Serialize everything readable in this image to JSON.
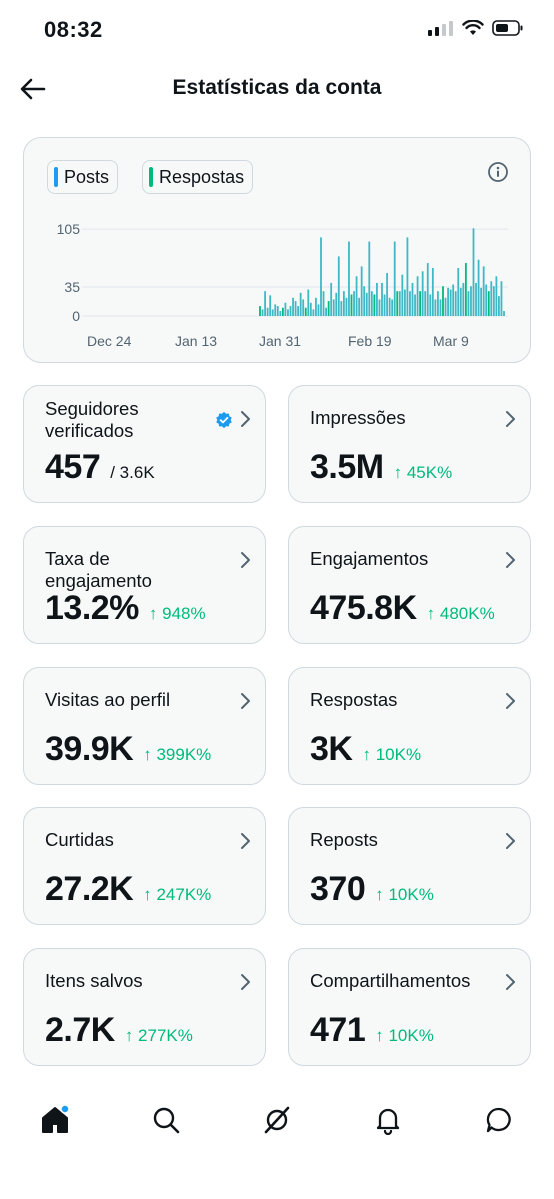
{
  "status_bar": {
    "time": "08:32"
  },
  "header": {
    "title": "Estatísticas da conta",
    "back_icon": "arrow-left-icon"
  },
  "colors": {
    "posts": "#1d9bf0",
    "replies": "#00ba7c",
    "bars": "#3fb8c6",
    "positive": "#00ba7c"
  },
  "legend": [
    {
      "label": "Posts"
    },
    {
      "label": "Respostas"
    }
  ],
  "chart_data": {
    "type": "bar",
    "x_tick_labels": [
      "Dec 24",
      "Jan 13",
      "Jan 31",
      "Feb 19",
      "Mar 9"
    ],
    "y_tick_labels": [
      "105",
      "35",
      "0"
    ],
    "ylim": [
      0,
      110
    ],
    "series": [
      {
        "name": "Posts",
        "values": []
      },
      {
        "name": "Respostas",
        "values": [
          12,
          8,
          30,
          10,
          25,
          8,
          14,
          12,
          6,
          10,
          16,
          8,
          12,
          22,
          18,
          12,
          28,
          20,
          10,
          32,
          16,
          8,
          22,
          14,
          95,
          30,
          10,
          18,
          40,
          20,
          28,
          72,
          18,
          30,
          22,
          90,
          26,
          30,
          48,
          22,
          60,
          36,
          28,
          90,
          30,
          26,
          40,
          20,
          40,
          26,
          52,
          22,
          20,
          90,
          30,
          30,
          50,
          32,
          95,
          30,
          40,
          26,
          48,
          30,
          54,
          30,
          64,
          26,
          58,
          20,
          30,
          20,
          36,
          22,
          34,
          32,
          38,
          30,
          58,
          34,
          40,
          64,
          30,
          36,
          106,
          40,
          68,
          34,
          60,
          38,
          30,
          42,
          36,
          48,
          24,
          42,
          6
        ]
      }
    ]
  },
  "stats": [
    {
      "label": "Seguidores verificados",
      "value": "457",
      "total": "/ 3.6K",
      "change": ""
    },
    {
      "label": "Impressões",
      "value": "3.5M",
      "change": "↑ 45K%"
    },
    {
      "label": "Taxa de engajamento",
      "value": "13.2%",
      "change": "↑ 948%"
    },
    {
      "label": "Engajamentos",
      "value": "475.8K",
      "change": "↑ 480K%"
    },
    {
      "label": "Visitas ao perfil",
      "value": "39.9K",
      "change": "↑ 399K%"
    },
    {
      "label": "Respostas",
      "value": "3K",
      "change": "↑ 10K%"
    },
    {
      "label": "Curtidas",
      "value": "27.2K",
      "change": "↑ 247K%"
    },
    {
      "label": "Reposts",
      "value": "370",
      "change": "↑ 10K%"
    },
    {
      "label": "Itens salvos",
      "value": "2.7K",
      "change": "↑ 277K%"
    },
    {
      "label": "Compartilhamentos",
      "value": "471",
      "change": "↑ 10K%"
    }
  ],
  "tab_bar": [
    {
      "icon": "home-icon",
      "active": true
    },
    {
      "icon": "search-icon"
    },
    {
      "icon": "grok-icon"
    },
    {
      "icon": "bell-icon"
    },
    {
      "icon": "messages-icon"
    }
  ]
}
